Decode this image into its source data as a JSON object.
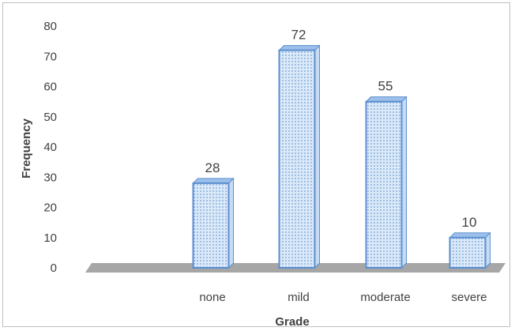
{
  "chart_data": {
    "type": "bar",
    "title": "",
    "xlabel": "Grade",
    "ylabel": "Frequency",
    "categories": [
      "none",
      "mild",
      "moderate",
      "severe"
    ],
    "values": [
      28,
      72,
      55,
      10
    ],
    "data_labels": [
      "28",
      "72",
      "55",
      "10"
    ],
    "ylim": [
      0,
      80
    ],
    "yticks": [
      "0",
      "10",
      "20",
      "30",
      "40",
      "50",
      "60",
      "70",
      "80"
    ],
    "grid": false,
    "legend": "none",
    "style": "3d-column",
    "colors": {
      "bar_fill": "#dbe9f8",
      "bar_dots": "#6f9fd8",
      "bar_edge": "#5b8fd0",
      "bar_top": "#9cc0ea",
      "floor": "#a6a6a6",
      "text": "#404040"
    }
  }
}
